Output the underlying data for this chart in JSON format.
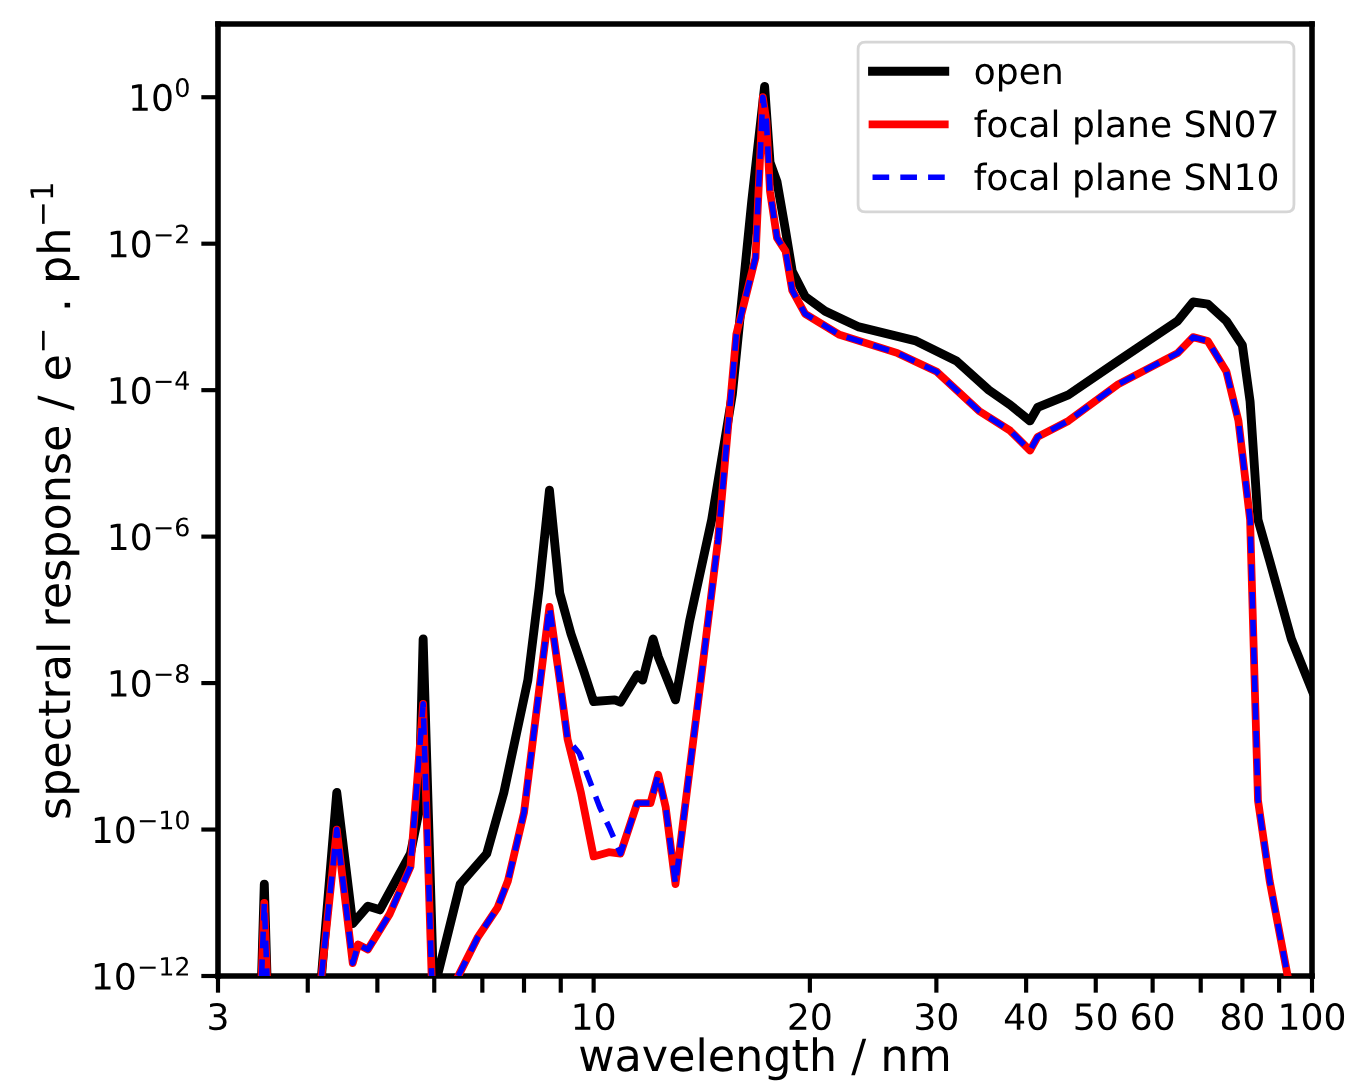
{
  "chart_data": {
    "type": "line",
    "xlabel": "wavelength / nm",
    "ylabel": "spectral response / e$^{−}$ . ph$^{−1}$",
    "log": "xy",
    "grid": false,
    "legend": "top right",
    "xlim": [
      3,
      100
    ],
    "ylim": [
      1e-12,
      10
    ],
    "xticks": [
      3,
      {
        "value": 4,
        "label": null
      },
      {
        "value": 5,
        "label": null
      },
      {
        "value": 6,
        "label": null
      },
      {
        "value": 7,
        "label": null
      },
      {
        "value": 8,
        "label": null
      },
      {
        "value": 9,
        "label": null
      },
      10,
      20,
      30,
      40,
      50,
      60,
      {
        "value": 70,
        "label": null
      },
      80,
      {
        "value": 90,
        "label": null
      },
      100
    ],
    "yticks": [
      {
        "value": 1e-12,
        "label": "10$^{−12}$"
      },
      {
        "value": 1e-10,
        "label": "10$^{−10}$"
      },
      {
        "value": 1e-08,
        "label": "10$^{−8}$"
      },
      {
        "value": 1e-06,
        "label": "10$^{−6}$"
      },
      {
        "value": 0.0001,
        "label": "10$^{−4}$"
      },
      {
        "value": 0.01,
        "label": "10$^{−2}$"
      },
      {
        "value": 1,
        "label": "10$^{0}$"
      }
    ],
    "series": [
      {
        "name": "open",
        "color": "#000000",
        "line_style": "solid",
        "x": [
          3.45,
          3.48,
          3.51,
          3.6,
          4.18,
          4.39,
          4.62,
          4.85,
          5.04,
          5.56,
          5.71,
          5.79,
          5.98,
          6.0,
          6.06,
          6.52,
          7.1,
          7.5,
          8.1,
          8.4,
          8.68,
          8.97,
          9.3,
          9.7,
          10,
          10.7,
          10.9,
          11.5,
          11.7,
          12.1,
          12.3,
          13,
          13.6,
          14.6,
          15.6,
          16.6,
          17.3,
          17.6,
          18.0,
          18.5,
          18.9,
          19.7,
          21,
          23.4,
          28.1,
          32,
          35.5,
          38,
          40.5,
          41.5,
          45.8,
          53.7,
          65,
          68.3,
          71.6,
          76,
          80,
          82,
          84.1,
          87.3,
          93.6,
          100
        ],
        "values": [
          1e-12,
          1.8e-11,
          1e-12,
          null,
          1e-12,
          3.2e-10,
          5.2e-12,
          9e-12,
          8e-12,
          4.7e-11,
          1.7e-10,
          4e-08,
          1e-12,
          null,
          1e-12,
          1.8e-11,
          4.7e-11,
          3.2e-10,
          1.1e-08,
          2e-07,
          4.3e-06,
          1.7e-07,
          4.7e-08,
          1.4e-08,
          5.6e-09,
          5.9e-09,
          5.5e-09,
          1.3e-08,
          1.1e-08,
          4e-08,
          2.3e-08,
          5.9e-09,
          7e-08,
          1.7e-06,
          8.8e-05,
          0.038,
          1.4,
          0.13,
          0.07,
          0.015,
          0.0042,
          0.0019,
          0.0012,
          0.00073,
          0.00047,
          0.00025,
          0.0001,
          6.3e-05,
          3.8e-05,
          5.8e-05,
          8.6e-05,
          0.00025,
          0.00088,
          0.0016,
          0.0015,
          0.00088,
          0.00041,
          7e-05,
          1.7e-06,
          4.7e-07,
          4e-08,
          8e-09
        ]
      },
      {
        "name": "focal plane SN07",
        "color": "#ff0000",
        "line_style": "solid",
        "x": [
          3.45,
          3.48,
          3.51,
          3.6,
          4.18,
          4.39,
          4.62,
          4.7,
          4.85,
          5.2,
          5.56,
          5.79,
          5.95,
          6.2,
          6.48,
          6.9,
          7.35,
          7.6,
          8.0,
          8.3,
          8.68,
          8.97,
          9.2,
          9.6,
          10,
          10.5,
          10.9,
          11.5,
          12,
          12.3,
          12.6,
          13,
          13.4,
          14.1,
          14.9,
          15.8,
          16.8,
          17.2,
          17.4,
          17.6,
          18,
          18.5,
          18.9,
          19.7,
          22,
          26.5,
          30,
          34.4,
          38,
          40.5,
          41.5,
          45.8,
          53.7,
          65,
          68.3,
          71.6,
          76,
          79,
          82,
          84.1,
          87.3,
          92.5
        ],
        "values": [
          1e-12,
          1e-11,
          1e-12,
          null,
          1e-12,
          1e-10,
          1.5e-12,
          2.7e-12,
          2.3e-12,
          7e-12,
          3.1e-11,
          5.2e-09,
          1e-12,
          null,
          1e-12,
          3.4e-12,
          8.6e-12,
          2e-11,
          1.7e-10,
          3.2e-09,
          1.1e-07,
          1.1e-08,
          1.7e-09,
          3.2e-10,
          4.3e-11,
          4.9e-11,
          4.7e-11,
          2.3e-10,
          2.3e-10,
          5.6e-10,
          2e-10,
          1.8e-11,
          2e-10,
          1.1e-08,
          9e-07,
          0.00058,
          0.0064,
          1.0,
          0.47,
          0.052,
          0.012,
          0.0079,
          0.0023,
          0.0011,
          0.00057,
          0.00032,
          0.00018,
          5.2e-05,
          2.8e-05,
          1.5e-05,
          2.3e-05,
          3.8e-05,
          0.00012,
          0.00032,
          0.00053,
          0.00047,
          0.00018,
          3.8e-05,
          1.7e-06,
          2.5e-10,
          2e-11,
          1e-12
        ]
      },
      {
        "name": "focal plane SN10",
        "color": "#0000ff",
        "line_style": "dashed",
        "x": [
          3.45,
          3.48,
          3.51,
          3.6,
          4.18,
          4.39,
          4.62,
          4.7,
          4.85,
          5.2,
          5.56,
          5.79,
          5.95,
          6.2,
          6.48,
          6.9,
          7.35,
          7.6,
          8.0,
          8.3,
          8.68,
          8.97,
          9.2,
          9.55,
          10.2,
          10.5,
          10.9,
          11.5,
          12,
          12.3,
          12.6,
          13,
          13.4,
          14.1,
          14.9,
          15.8,
          16.8,
          17.2,
          17.4,
          17.6,
          18,
          18.5,
          18.9,
          19.7,
          22,
          26.5,
          30,
          34.4,
          38,
          40.5,
          41.5,
          45.8,
          53.7,
          65,
          68.3,
          71.6,
          76,
          79,
          82,
          84.1,
          87.3,
          92.5
        ],
        "values": [
          1e-12,
          1e-11,
          1e-12,
          null,
          1e-12,
          1e-10,
          1.5e-12,
          2.7e-12,
          2.3e-12,
          7e-12,
          3.1e-11,
          5.2e-09,
          1e-12,
          null,
          1e-12,
          3.4e-12,
          8.6e-12,
          2e-11,
          1.7e-10,
          3.2e-09,
          1.1e-07,
          1.1e-08,
          1.7e-09,
          1.1e-09,
          2e-10,
          1.1e-10,
          4.7e-11,
          2.3e-10,
          2.3e-10,
          5.6e-10,
          2e-10,
          1.8e-11,
          2e-10,
          1.1e-08,
          9e-07,
          0.00058,
          0.0064,
          1.0,
          0.47,
          0.052,
          0.012,
          0.0079,
          0.0023,
          0.0011,
          0.00057,
          0.00032,
          0.00018,
          5.2e-05,
          2.8e-05,
          1.5e-05,
          2.3e-05,
          3.8e-05,
          0.00012,
          0.00032,
          0.00053,
          0.00047,
          0.00018,
          3.8e-05,
          1.7e-06,
          2.5e-10,
          2e-11,
          1e-12
        ]
      }
    ]
  }
}
